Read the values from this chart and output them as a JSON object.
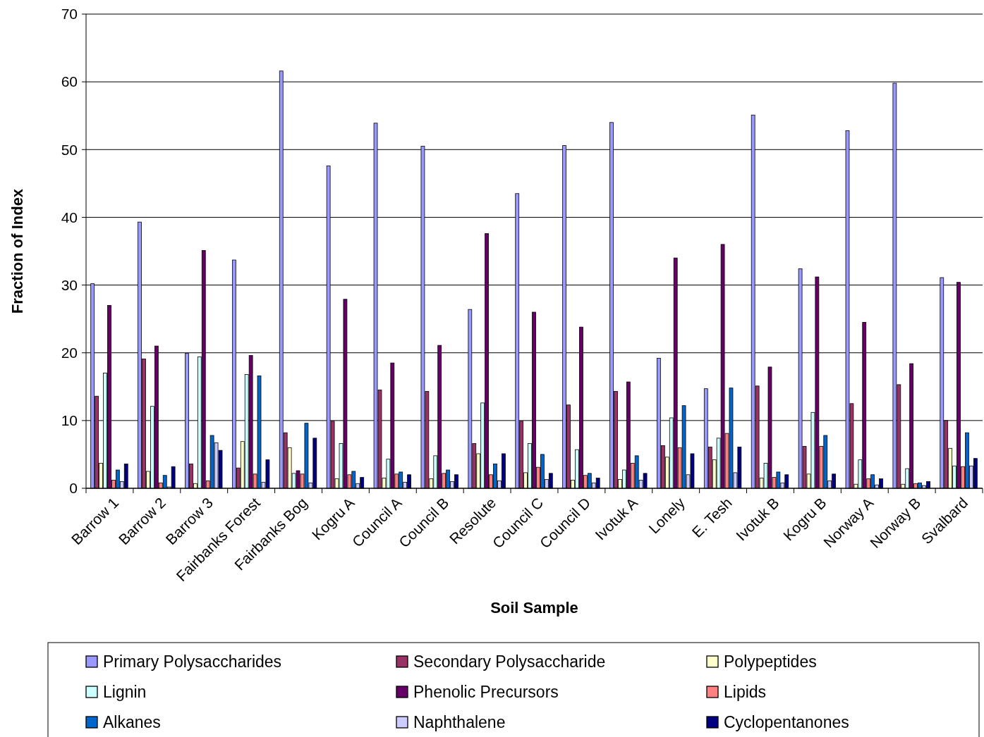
{
  "chart_data": {
    "type": "bar",
    "xlabel": "Soil Sample",
    "ylabel": "Fraction of Index",
    "categories": [
      "Barrow 1",
      "Barrow 2",
      "Barrow 3",
      "Fairbanks Forest",
      "Fairbanks Bog",
      "Kogru A",
      "Council A",
      "Council B",
      "Resolute",
      "Council C",
      "Council D",
      "Ivotuk A",
      "Lonely",
      "E. Tesh",
      "Ivotuk B",
      "Kogru B",
      "Norway A",
      "Norway B",
      "Svalbard"
    ],
    "series": [
      {
        "name": "Primary Polysaccharides",
        "color": "#9999ff",
        "values": [
          30.2,
          39.3,
          19.9,
          33.7,
          61.6,
          47.6,
          53.9,
          50.5,
          26.4,
          43.5,
          50.6,
          54.0,
          19.2,
          14.7,
          55.1,
          32.4,
          52.8,
          59.8,
          31.1
        ]
      },
      {
        "name": "Secondary Polysaccharide",
        "color": "#993366",
        "values": [
          13.6,
          19.1,
          3.6,
          3.0,
          8.2,
          9.9,
          14.5,
          14.3,
          6.6,
          9.9,
          12.3,
          14.3,
          6.3,
          6.1,
          15.1,
          6.2,
          12.5,
          15.3,
          10.0
        ]
      },
      {
        "name": "Polypeptides",
        "color": "#ffffcc",
        "values": [
          3.7,
          2.5,
          0.7,
          6.9,
          6.0,
          1.4,
          1.5,
          1.4,
          5.1,
          2.3,
          1.2,
          1.3,
          4.6,
          4.2,
          1.5,
          2.1,
          0.6,
          0.6,
          5.9
        ]
      },
      {
        "name": "Lignin",
        "color": "#ccffff",
        "values": [
          17.0,
          12.1,
          19.4,
          16.8,
          2.2,
          6.6,
          4.3,
          4.8,
          12.6,
          6.6,
          5.7,
          2.7,
          10.4,
          7.4,
          3.7,
          11.2,
          4.2,
          2.9,
          3.3
        ]
      },
      {
        "name": "Phenolic Precursors",
        "color": "#660066",
        "values": [
          27.0,
          21.0,
          35.1,
          19.6,
          2.6,
          27.9,
          18.5,
          21.1,
          37.6,
          26.0,
          23.8,
          15.7,
          34.0,
          36.0,
          17.9,
          31.2,
          24.5,
          18.4,
          30.4
        ]
      },
      {
        "name": "Lipids",
        "color": "#ff8080",
        "values": [
          1.2,
          0.8,
          1.1,
          2.1,
          2.1,
          2.0,
          2.1,
          2.2,
          2.0,
          3.1,
          1.9,
          3.7,
          6.0,
          8.1,
          1.6,
          6.2,
          1.4,
          0.7,
          3.2
        ]
      },
      {
        "name": "Alkanes",
        "color": "#0066cc",
        "values": [
          2.7,
          1.9,
          7.8,
          16.6,
          9.6,
          2.5,
          2.4,
          2.7,
          3.6,
          5.0,
          2.2,
          4.8,
          12.2,
          14.8,
          2.4,
          7.8,
          2.0,
          0.8,
          8.2
        ]
      },
      {
        "name": "Naphthalene",
        "color": "#ccccff",
        "values": [
          1.0,
          0.2,
          6.7,
          0.9,
          0.8,
          0.7,
          0.9,
          1.0,
          1.1,
          1.3,
          0.8,
          1.2,
          2.0,
          2.3,
          0.8,
          1.1,
          0.5,
          0.4,
          3.3
        ]
      },
      {
        "name": "Cyclopentanones",
        "color": "#000080",
        "values": [
          3.6,
          3.2,
          5.6,
          4.2,
          7.4,
          1.6,
          2.0,
          2.0,
          5.1,
          2.2,
          1.5,
          2.2,
          5.1,
          6.1,
          2.0,
          2.1,
          1.4,
          1.0,
          4.4
        ]
      }
    ],
    "ylim": [
      0,
      70
    ],
    "yticks": [
      0,
      10,
      20,
      30,
      40,
      50,
      60,
      70
    ],
    "grid": "y",
    "legend": "bottom"
  }
}
